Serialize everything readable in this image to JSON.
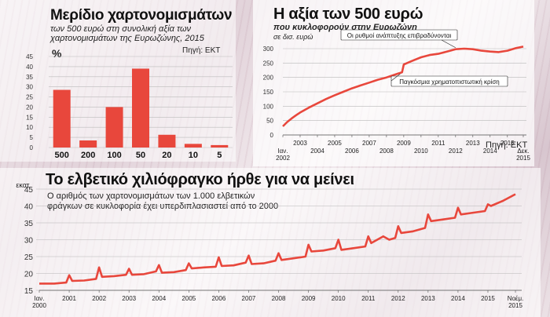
{
  "chart_data": [
    {
      "type": "bar",
      "title": "Μερίδιο χαρτονομισμάτων",
      "subtitle": "των 500 ευρώ στη συνολική αξία των χαρτονομισμάτων της Ευρωζώνης, 2015",
      "ylabel": "%",
      "source": "Πηγή: ΕΚΤ",
      "categories": [
        "500",
        "200",
        "100",
        "50",
        "20",
        "10",
        "5"
      ],
      "values": [
        28.5,
        3.5,
        20,
        39,
        6.3,
        1.8,
        1.2
      ],
      "ylim": [
        0,
        45
      ],
      "yticks": [
        0,
        5,
        10,
        15,
        20,
        25,
        30,
        35,
        40,
        45
      ],
      "color": "#e8473c"
    },
    {
      "type": "line",
      "title": "Η αξία των 500 ευρώ",
      "subtitle": "που κυκλοφορούν στην Ευρωζώνη",
      "ylabel": "σε δισ. ευρώ",
      "source": "Πηγή: ΕΚΤ",
      "ylim": [
        0,
        300
      ],
      "yticks": [
        0,
        50,
        100,
        150,
        200,
        250,
        300
      ],
      "xticks": [
        {
          "t": 2002.0,
          "label": "Ιαν.\n2002",
          "row": 1
        },
        {
          "t": 2003.0,
          "label": "2003",
          "row": 0
        },
        {
          "t": 2004.0,
          "label": "2004",
          "row": 1
        },
        {
          "t": 2005.0,
          "label": "2005",
          "row": 0
        },
        {
          "t": 2006.0,
          "label": "2006",
          "row": 1
        },
        {
          "t": 2007.0,
          "label": "2007",
          "row": 0
        },
        {
          "t": 2008.0,
          "label": "2008",
          "row": 1
        },
        {
          "t": 2009.0,
          "label": "2009",
          "row": 0
        },
        {
          "t": 2010.0,
          "label": "2010",
          "row": 1
        },
        {
          "t": 2011.0,
          "label": "2011",
          "row": 0
        },
        {
          "t": 2012.0,
          "label": "2012",
          "row": 1
        },
        {
          "t": 2013.0,
          "label": "2013",
          "row": 0
        },
        {
          "t": 2014.0,
          "label": "2014",
          "row": 1
        },
        {
          "t": 2015.0,
          "label": "2015",
          "row": 0
        },
        {
          "t": 2015.92,
          "label": "Δεκ.\n2015",
          "row": 1
        }
      ],
      "x": [
        2002.0,
        2002.25,
        2002.5,
        2002.75,
        2003.0,
        2003.5,
        2004.0,
        2004.5,
        2005.0,
        2005.5,
        2006.0,
        2006.5,
        2007.0,
        2007.5,
        2008.0,
        2008.5,
        2008.9,
        2009.0,
        2009.5,
        2010.0,
        2010.5,
        2011.0,
        2011.5,
        2012.0,
        2012.5,
        2013.0,
        2013.5,
        2014.0,
        2014.5,
        2015.0,
        2015.5,
        2015.92
      ],
      "y": [
        30,
        45,
        57,
        68,
        78,
        95,
        110,
        125,
        138,
        150,
        162,
        172,
        182,
        192,
        200,
        210,
        218,
        245,
        258,
        270,
        278,
        282,
        290,
        298,
        300,
        298,
        293,
        290,
        288,
        293,
        302,
        307
      ],
      "annotations": [
        {
          "text": "Οι ρυθμοί ανάπτυξης επιβραδύνονται",
          "x": 2012.0,
          "y": 298
        },
        {
          "text": "Παγκόσμια χρηματοπιστωτική κρίση",
          "x": 2008.8,
          "y": 218
        }
      ],
      "color": "#e8473c"
    },
    {
      "type": "line",
      "title": "Το ελβετικό χιλιόφραγκο ήρθε για να μείνει",
      "subtitle": "Ο αριθμός των χαρτονομισμάτων των 1.000 ελβετικών φράγκων σε κυκλοφορία έχει υπερδιπλασιαστεί από το 2000",
      "ylabel": "εκατ.",
      "ylim": [
        15,
        45
      ],
      "yticks": [
        15,
        20,
        25,
        30,
        35,
        40,
        45
      ],
      "xticks": [
        {
          "t": 2000.0,
          "label": "Ιαν.\n2000"
        },
        {
          "t": 2001.0,
          "label": "2001"
        },
        {
          "t": 2002.0,
          "label": "2002"
        },
        {
          "t": 2003.0,
          "label": "2003"
        },
        {
          "t": 2004.0,
          "label": "2004"
        },
        {
          "t": 2005.0,
          "label": "2005"
        },
        {
          "t": 2006.0,
          "label": "2006"
        },
        {
          "t": 2007.0,
          "label": "2007"
        },
        {
          "t": 2008.0,
          "label": "2008"
        },
        {
          "t": 2009.0,
          "label": "2009"
        },
        {
          "t": 2010.0,
          "label": "2010"
        },
        {
          "t": 2011.0,
          "label": "2011"
        },
        {
          "t": 2012.0,
          "label": "2012"
        },
        {
          "t": 2013.0,
          "label": "2013"
        },
        {
          "t": 2014.0,
          "label": "2014"
        },
        {
          "t": 2015.0,
          "label": "2015"
        },
        {
          "t": 2015.92,
          "label": "Νοέμ.\n2015"
        }
      ],
      "x": [
        2000.0,
        2000.5,
        2000.9,
        2001.0,
        2001.1,
        2001.5,
        2001.9,
        2002.0,
        2002.1,
        2002.5,
        2002.9,
        2003.0,
        2003.1,
        2003.5,
        2003.9,
        2004.0,
        2004.1,
        2004.5,
        2004.9,
        2005.0,
        2005.1,
        2005.5,
        2005.9,
        2006.0,
        2006.1,
        2006.5,
        2006.9,
        2007.0,
        2007.1,
        2007.5,
        2007.9,
        2008.0,
        2008.1,
        2008.5,
        2008.9,
        2009.0,
        2009.1,
        2009.5,
        2009.9,
        2010.0,
        2010.1,
        2010.5,
        2010.9,
        2011.0,
        2011.1,
        2011.5,
        2011.7,
        2011.9,
        2012.0,
        2012.1,
        2012.5,
        2012.9,
        2013.0,
        2013.1,
        2013.5,
        2013.9,
        2014.0,
        2014.1,
        2014.5,
        2014.9,
        2015.0,
        2015.1,
        2015.5,
        2015.92
      ],
      "y": [
        17.0,
        17.0,
        17.3,
        19.5,
        17.8,
        17.9,
        18.4,
        21.8,
        19.0,
        19.2,
        19.6,
        21.4,
        19.6,
        19.8,
        20.6,
        22.5,
        20.2,
        20.4,
        21.0,
        23.0,
        21.5,
        21.8,
        22.0,
        24.8,
        22.2,
        22.4,
        23.2,
        25.3,
        22.8,
        23.0,
        23.8,
        26.0,
        24.0,
        24.5,
        25.0,
        28.5,
        26.5,
        26.8,
        27.5,
        30.0,
        27.0,
        27.5,
        28.0,
        31.0,
        29.0,
        31.0,
        30.0,
        30.5,
        34.0,
        32.0,
        32.5,
        33.5,
        37.5,
        35.5,
        36.0,
        36.5,
        39.5,
        37.5,
        38.0,
        38.5,
        40.5,
        40.0,
        41.5,
        43.5
      ],
      "color": "#e8473c"
    }
  ]
}
